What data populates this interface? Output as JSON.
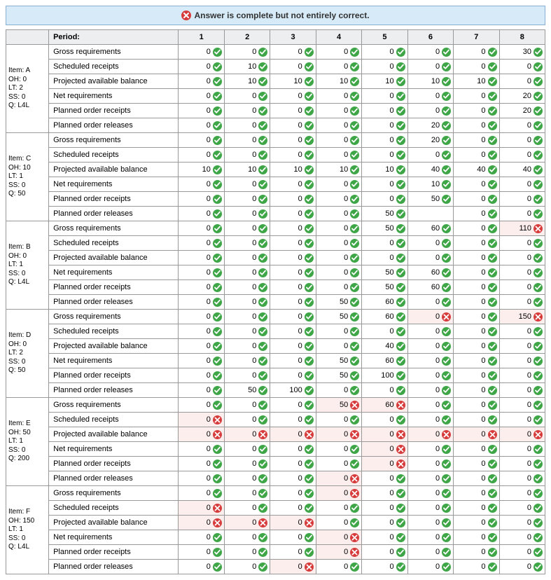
{
  "banner": {
    "text": "Answer is complete but not entirely correct."
  },
  "header": {
    "period_label": "Period:",
    "periods": [
      "1",
      "2",
      "3",
      "4",
      "5",
      "6",
      "7",
      "8"
    ]
  },
  "row_labels": [
    "Gross requirements",
    "Scheduled receipts",
    "Projected available balance",
    "Net requirements",
    "Planned order receipts",
    "Planned order releases"
  ],
  "colors": {
    "banner_bg": "#d6eaf7",
    "banner_border": "#8aaed0",
    "ok": "#3fa648",
    "bad": "#d73c3c",
    "wrong_cell_bg": "#fdeeee",
    "grid_border": "#999999",
    "header_bg": "#edeef0"
  },
  "items": [
    {
      "label_lines": [
        "Item: A",
        "OH: 0",
        "LT: 2",
        "SS: 0",
        "Q: L4L"
      ],
      "rows": [
        [
          [
            0,
            "ok"
          ],
          [
            0,
            "ok"
          ],
          [
            0,
            "ok"
          ],
          [
            0,
            "ok"
          ],
          [
            0,
            "ok"
          ],
          [
            0,
            "ok"
          ],
          [
            0,
            "ok"
          ],
          [
            30,
            "ok"
          ]
        ],
        [
          [
            0,
            "ok"
          ],
          [
            10,
            "ok"
          ],
          [
            0,
            "ok"
          ],
          [
            0,
            "ok"
          ],
          [
            0,
            "ok"
          ],
          [
            0,
            "ok"
          ],
          [
            0,
            "ok"
          ],
          [
            0,
            "ok"
          ]
        ],
        [
          [
            0,
            "ok"
          ],
          [
            10,
            "ok"
          ],
          [
            10,
            "ok"
          ],
          [
            10,
            "ok"
          ],
          [
            10,
            "ok"
          ],
          [
            10,
            "ok"
          ],
          [
            10,
            "ok"
          ],
          [
            0,
            "ok"
          ]
        ],
        [
          [
            0,
            "ok"
          ],
          [
            0,
            "ok"
          ],
          [
            0,
            "ok"
          ],
          [
            0,
            "ok"
          ],
          [
            0,
            "ok"
          ],
          [
            0,
            "ok"
          ],
          [
            0,
            "ok"
          ],
          [
            20,
            "ok"
          ]
        ],
        [
          [
            0,
            "ok"
          ],
          [
            0,
            "ok"
          ],
          [
            0,
            "ok"
          ],
          [
            0,
            "ok"
          ],
          [
            0,
            "ok"
          ],
          [
            0,
            "ok"
          ],
          [
            0,
            "ok"
          ],
          [
            20,
            "ok"
          ]
        ],
        [
          [
            0,
            "ok"
          ],
          [
            0,
            "ok"
          ],
          [
            0,
            "ok"
          ],
          [
            0,
            "ok"
          ],
          [
            0,
            "ok"
          ],
          [
            20,
            "ok"
          ],
          [
            0,
            "ok"
          ],
          [
            0,
            "ok"
          ]
        ]
      ]
    },
    {
      "label_lines": [
        "Item: C",
        "OH: 10",
        "LT: 1",
        "SS: 0",
        "Q: 50"
      ],
      "rows": [
        [
          [
            0,
            "ok"
          ],
          [
            0,
            "ok"
          ],
          [
            0,
            "ok"
          ],
          [
            0,
            "ok"
          ],
          [
            0,
            "ok"
          ],
          [
            20,
            "ok"
          ],
          [
            0,
            "ok"
          ],
          [
            0,
            "ok"
          ]
        ],
        [
          [
            0,
            "ok"
          ],
          [
            0,
            "ok"
          ],
          [
            0,
            "ok"
          ],
          [
            0,
            "ok"
          ],
          [
            0,
            "ok"
          ],
          [
            0,
            "ok"
          ],
          [
            0,
            "ok"
          ],
          [
            0,
            "ok"
          ]
        ],
        [
          [
            10,
            "ok"
          ],
          [
            10,
            "ok"
          ],
          [
            10,
            "ok"
          ],
          [
            10,
            "ok"
          ],
          [
            10,
            "ok"
          ],
          [
            40,
            "ok"
          ],
          [
            40,
            "ok"
          ],
          [
            40,
            "ok"
          ]
        ],
        [
          [
            0,
            "ok"
          ],
          [
            0,
            "ok"
          ],
          [
            0,
            "ok"
          ],
          [
            0,
            "ok"
          ],
          [
            0,
            "ok"
          ],
          [
            10,
            "ok"
          ],
          [
            0,
            "ok"
          ],
          [
            0,
            "ok"
          ]
        ],
        [
          [
            0,
            "ok"
          ],
          [
            0,
            "ok"
          ],
          [
            0,
            "ok"
          ],
          [
            0,
            "ok"
          ],
          [
            0,
            "ok"
          ],
          [
            50,
            "ok"
          ],
          [
            0,
            "ok"
          ],
          [
            0,
            "ok"
          ]
        ],
        [
          [
            0,
            "ok"
          ],
          [
            0,
            "ok"
          ],
          [
            0,
            "ok"
          ],
          [
            0,
            "ok"
          ],
          [
            50,
            "ok"
          ],
          [
            null,
            "blank"
          ],
          [
            0,
            "ok"
          ],
          [
            0,
            "ok"
          ]
        ]
      ]
    },
    {
      "label_lines": [
        "Item: B",
        "OH: 0",
        "LT: 1",
        "SS: 0",
        "Q: L4L"
      ],
      "rows": [
        [
          [
            0,
            "ok"
          ],
          [
            0,
            "ok"
          ],
          [
            0,
            "ok"
          ],
          [
            0,
            "ok"
          ],
          [
            50,
            "ok"
          ],
          [
            60,
            "ok"
          ],
          [
            0,
            "ok"
          ],
          [
            110,
            "bad"
          ]
        ],
        [
          [
            0,
            "ok"
          ],
          [
            0,
            "ok"
          ],
          [
            0,
            "ok"
          ],
          [
            0,
            "ok"
          ],
          [
            0,
            "ok"
          ],
          [
            0,
            "ok"
          ],
          [
            0,
            "ok"
          ],
          [
            0,
            "ok"
          ]
        ],
        [
          [
            0,
            "ok"
          ],
          [
            0,
            "ok"
          ],
          [
            0,
            "ok"
          ],
          [
            0,
            "ok"
          ],
          [
            0,
            "ok"
          ],
          [
            0,
            "ok"
          ],
          [
            0,
            "ok"
          ],
          [
            0,
            "ok"
          ]
        ],
        [
          [
            0,
            "ok"
          ],
          [
            0,
            "ok"
          ],
          [
            0,
            "ok"
          ],
          [
            0,
            "ok"
          ],
          [
            50,
            "ok"
          ],
          [
            60,
            "ok"
          ],
          [
            0,
            "ok"
          ],
          [
            0,
            "ok"
          ]
        ],
        [
          [
            0,
            "ok"
          ],
          [
            0,
            "ok"
          ],
          [
            0,
            "ok"
          ],
          [
            0,
            "ok"
          ],
          [
            50,
            "ok"
          ],
          [
            60,
            "ok"
          ],
          [
            0,
            "ok"
          ],
          [
            0,
            "ok"
          ]
        ],
        [
          [
            0,
            "ok"
          ],
          [
            0,
            "ok"
          ],
          [
            0,
            "ok"
          ],
          [
            50,
            "ok"
          ],
          [
            60,
            "ok"
          ],
          [
            0,
            "ok"
          ],
          [
            0,
            "ok"
          ],
          [
            0,
            "ok"
          ]
        ]
      ]
    },
    {
      "label_lines": [
        "Item: D",
        "OH: 0",
        "LT: 2",
        "SS: 0",
        "Q: 50"
      ],
      "rows": [
        [
          [
            0,
            "ok"
          ],
          [
            0,
            "ok"
          ],
          [
            0,
            "ok"
          ],
          [
            50,
            "ok"
          ],
          [
            60,
            "ok"
          ],
          [
            0,
            "bad"
          ],
          [
            0,
            "ok"
          ],
          [
            150,
            "bad"
          ]
        ],
        [
          [
            0,
            "ok"
          ],
          [
            0,
            "ok"
          ],
          [
            0,
            "ok"
          ],
          [
            0,
            "ok"
          ],
          [
            0,
            "ok"
          ],
          [
            0,
            "ok"
          ],
          [
            0,
            "ok"
          ],
          [
            0,
            "ok"
          ]
        ],
        [
          [
            0,
            "ok"
          ],
          [
            0,
            "ok"
          ],
          [
            0,
            "ok"
          ],
          [
            0,
            "ok"
          ],
          [
            40,
            "ok"
          ],
          [
            0,
            "ok"
          ],
          [
            0,
            "ok"
          ],
          [
            0,
            "ok"
          ]
        ],
        [
          [
            0,
            "ok"
          ],
          [
            0,
            "ok"
          ],
          [
            0,
            "ok"
          ],
          [
            50,
            "ok"
          ],
          [
            60,
            "ok"
          ],
          [
            0,
            "ok"
          ],
          [
            0,
            "ok"
          ],
          [
            0,
            "ok"
          ]
        ],
        [
          [
            0,
            "ok"
          ],
          [
            0,
            "ok"
          ],
          [
            0,
            "ok"
          ],
          [
            50,
            "ok"
          ],
          [
            100,
            "ok"
          ],
          [
            0,
            "ok"
          ],
          [
            0,
            "ok"
          ],
          [
            0,
            "ok"
          ]
        ],
        [
          [
            0,
            "ok"
          ],
          [
            50,
            "ok"
          ],
          [
            100,
            "ok"
          ],
          [
            0,
            "ok"
          ],
          [
            0,
            "ok"
          ],
          [
            0,
            "ok"
          ],
          [
            0,
            "ok"
          ],
          [
            0,
            "ok"
          ]
        ]
      ]
    },
    {
      "label_lines": [
        "Item: E",
        "OH: 50",
        "LT: 1",
        "SS: 0",
        "Q: 200"
      ],
      "rows": [
        [
          [
            0,
            "ok"
          ],
          [
            0,
            "ok"
          ],
          [
            0,
            "ok"
          ],
          [
            50,
            "bad"
          ],
          [
            60,
            "bad"
          ],
          [
            0,
            "ok"
          ],
          [
            0,
            "ok"
          ],
          [
            0,
            "ok"
          ]
        ],
        [
          [
            0,
            "bad"
          ],
          [
            0,
            "ok"
          ],
          [
            0,
            "ok"
          ],
          [
            0,
            "ok"
          ],
          [
            0,
            "ok"
          ],
          [
            0,
            "ok"
          ],
          [
            0,
            "ok"
          ],
          [
            0,
            "ok"
          ]
        ],
        [
          [
            0,
            "bad"
          ],
          [
            0,
            "bad"
          ],
          [
            0,
            "bad"
          ],
          [
            0,
            "bad"
          ],
          [
            0,
            "bad"
          ],
          [
            0,
            "bad"
          ],
          [
            0,
            "bad"
          ],
          [
            0,
            "bad"
          ]
        ],
        [
          [
            0,
            "ok"
          ],
          [
            0,
            "ok"
          ],
          [
            0,
            "ok"
          ],
          [
            0,
            "ok"
          ],
          [
            0,
            "bad"
          ],
          [
            0,
            "ok"
          ],
          [
            0,
            "ok"
          ],
          [
            0,
            "ok"
          ]
        ],
        [
          [
            0,
            "ok"
          ],
          [
            0,
            "ok"
          ],
          [
            0,
            "ok"
          ],
          [
            0,
            "ok"
          ],
          [
            0,
            "bad"
          ],
          [
            0,
            "ok"
          ],
          [
            0,
            "ok"
          ],
          [
            0,
            "ok"
          ]
        ],
        [
          [
            0,
            "ok"
          ],
          [
            0,
            "ok"
          ],
          [
            0,
            "ok"
          ],
          [
            0,
            "bad"
          ],
          [
            0,
            "ok"
          ],
          [
            0,
            "ok"
          ],
          [
            0,
            "ok"
          ],
          [
            0,
            "ok"
          ]
        ]
      ]
    },
    {
      "label_lines": [
        "Item: F",
        "OH: 150",
        "LT: 1",
        "SS: 0",
        "Q: L4L"
      ],
      "rows": [
        [
          [
            0,
            "ok"
          ],
          [
            0,
            "ok"
          ],
          [
            0,
            "ok"
          ],
          [
            0,
            "bad"
          ],
          [
            0,
            "ok"
          ],
          [
            0,
            "ok"
          ],
          [
            0,
            "ok"
          ],
          [
            0,
            "ok"
          ]
        ],
        [
          [
            0,
            "bad"
          ],
          [
            0,
            "ok"
          ],
          [
            0,
            "ok"
          ],
          [
            0,
            "ok"
          ],
          [
            0,
            "ok"
          ],
          [
            0,
            "ok"
          ],
          [
            0,
            "ok"
          ],
          [
            0,
            "ok"
          ]
        ],
        [
          [
            0,
            "bad"
          ],
          [
            0,
            "bad"
          ],
          [
            0,
            "bad"
          ],
          [
            0,
            "ok"
          ],
          [
            0,
            "ok"
          ],
          [
            0,
            "ok"
          ],
          [
            0,
            "ok"
          ],
          [
            0,
            "ok"
          ]
        ],
        [
          [
            0,
            "ok"
          ],
          [
            0,
            "ok"
          ],
          [
            0,
            "ok"
          ],
          [
            0,
            "bad"
          ],
          [
            0,
            "ok"
          ],
          [
            0,
            "ok"
          ],
          [
            0,
            "ok"
          ],
          [
            0,
            "ok"
          ]
        ],
        [
          [
            0,
            "ok"
          ],
          [
            0,
            "ok"
          ],
          [
            0,
            "ok"
          ],
          [
            0,
            "bad"
          ],
          [
            0,
            "ok"
          ],
          [
            0,
            "ok"
          ],
          [
            0,
            "ok"
          ],
          [
            0,
            "ok"
          ]
        ],
        [
          [
            0,
            "ok"
          ],
          [
            0,
            "ok"
          ],
          [
            0,
            "bad"
          ],
          [
            0,
            "ok"
          ],
          [
            0,
            "ok"
          ],
          [
            0,
            "ok"
          ],
          [
            0,
            "ok"
          ],
          [
            0,
            "ok"
          ]
        ]
      ]
    }
  ]
}
